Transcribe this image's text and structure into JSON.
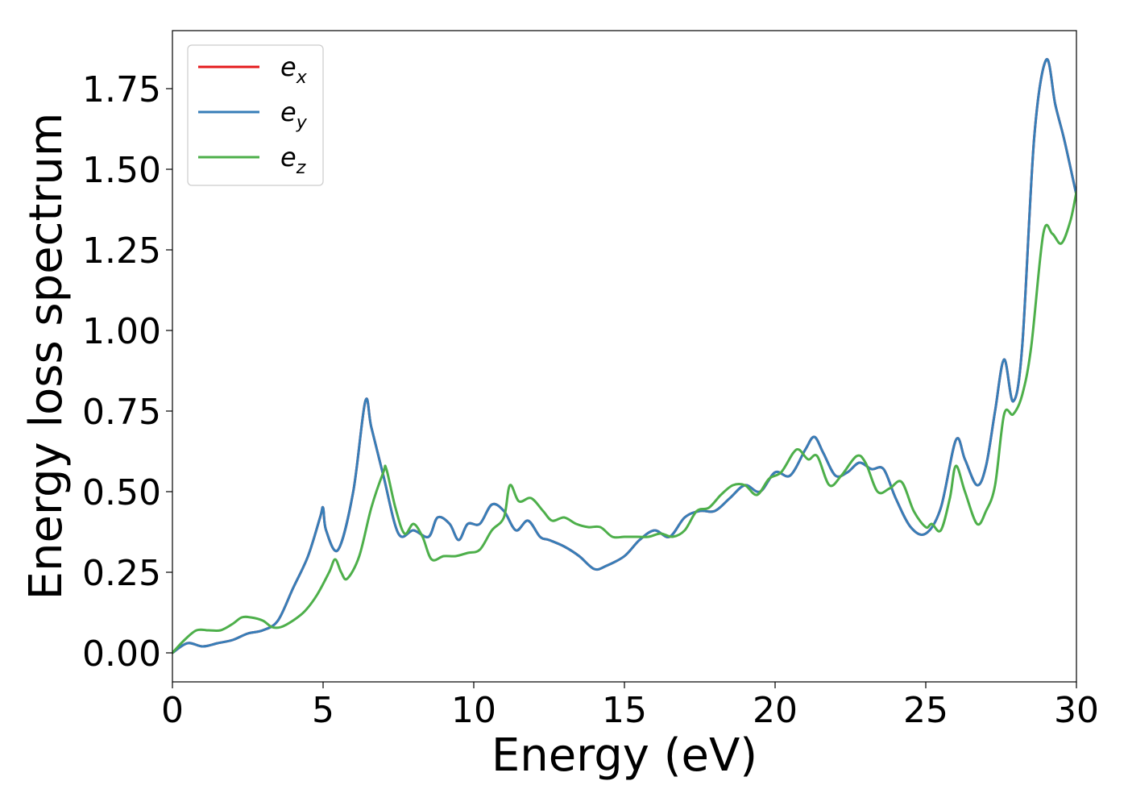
{
  "chart_data": {
    "type": "line",
    "xlabel": "Energy (eV)",
    "ylabel": "Energy loss spectrum",
    "xlim": [
      0,
      30
    ],
    "ylim": [
      -0.09,
      1.93
    ],
    "xticks": [
      0,
      5,
      10,
      15,
      20,
      25,
      30
    ],
    "xtick_labels": [
      "0",
      "5",
      "10",
      "15",
      "20",
      "25",
      "30"
    ],
    "yticks": [
      0.0,
      0.25,
      0.5,
      0.75,
      1.0,
      1.25,
      1.5,
      1.75
    ],
    "ytick_labels": [
      "0.00",
      "0.25",
      "0.50",
      "0.75",
      "1.00",
      "1.25",
      "1.50",
      "1.75"
    ],
    "grid": false,
    "legend": {
      "position": "top-left",
      "entries": [
        {
          "base": "e",
          "sub": "x",
          "color": "#e41a1c"
        },
        {
          "base": "e",
          "sub": "y",
          "color": "#377eb8"
        },
        {
          "base": "e",
          "sub": "z",
          "color": "#4daf4a"
        }
      ]
    },
    "series": [
      {
        "name": "ex",
        "color": "#e41a1c",
        "x": [
          0,
          0.5,
          1,
          1.5,
          2,
          2.5,
          3,
          3.5,
          4,
          4.5,
          4.9,
          5.0,
          5.1,
          5.5,
          6.0,
          6.4,
          6.6,
          7.0,
          7.5,
          8.0,
          8.5,
          8.8,
          9.2,
          9.5,
          9.8,
          10.2,
          10.6,
          11.0,
          11.4,
          11.8,
          12.2,
          12.5,
          13.0,
          13.5,
          14.0,
          14.4,
          15.0,
          15.5,
          16.0,
          16.5,
          17.0,
          17.5,
          18.0,
          18.5,
          19.0,
          19.5,
          20.0,
          20.5,
          21.0,
          21.3,
          21.6,
          22.0,
          22.4,
          22.8,
          23.2,
          23.6,
          24.0,
          24.5,
          25.0,
          25.5,
          26.0,
          26.3,
          26.7,
          27.0,
          27.3,
          27.6,
          27.9,
          28.2,
          28.6,
          29.0,
          29.3,
          29.6,
          30.0
        ],
        "y": [
          0.0,
          0.03,
          0.02,
          0.03,
          0.04,
          0.06,
          0.07,
          0.1,
          0.2,
          0.3,
          0.42,
          0.45,
          0.38,
          0.32,
          0.5,
          0.78,
          0.7,
          0.55,
          0.37,
          0.38,
          0.36,
          0.42,
          0.4,
          0.35,
          0.4,
          0.4,
          0.46,
          0.44,
          0.38,
          0.41,
          0.36,
          0.35,
          0.33,
          0.3,
          0.26,
          0.27,
          0.3,
          0.35,
          0.38,
          0.36,
          0.42,
          0.44,
          0.44,
          0.48,
          0.52,
          0.5,
          0.56,
          0.55,
          0.63,
          0.67,
          0.62,
          0.55,
          0.56,
          0.59,
          0.57,
          0.57,
          0.48,
          0.39,
          0.37,
          0.45,
          0.66,
          0.6,
          0.52,
          0.58,
          0.75,
          0.91,
          0.78,
          0.95,
          1.6,
          1.84,
          1.7,
          1.59,
          1.42
        ]
      },
      {
        "name": "ey",
        "color": "#377eb8",
        "x": [
          0,
          0.5,
          1,
          1.5,
          2,
          2.5,
          3,
          3.5,
          4,
          4.5,
          4.9,
          5.0,
          5.1,
          5.5,
          6.0,
          6.4,
          6.6,
          7.0,
          7.5,
          8.0,
          8.5,
          8.8,
          9.2,
          9.5,
          9.8,
          10.2,
          10.6,
          11.0,
          11.4,
          11.8,
          12.2,
          12.5,
          13.0,
          13.5,
          14.0,
          14.4,
          15.0,
          15.5,
          16.0,
          16.5,
          17.0,
          17.5,
          18.0,
          18.5,
          19.0,
          19.5,
          20.0,
          20.5,
          21.0,
          21.3,
          21.6,
          22.0,
          22.4,
          22.8,
          23.2,
          23.6,
          24.0,
          24.5,
          25.0,
          25.5,
          26.0,
          26.3,
          26.7,
          27.0,
          27.3,
          27.6,
          27.9,
          28.2,
          28.6,
          29.0,
          29.3,
          29.6,
          30.0
        ],
        "y": [
          0.0,
          0.03,
          0.02,
          0.03,
          0.04,
          0.06,
          0.07,
          0.1,
          0.2,
          0.3,
          0.42,
          0.45,
          0.38,
          0.32,
          0.5,
          0.78,
          0.7,
          0.55,
          0.37,
          0.38,
          0.36,
          0.42,
          0.4,
          0.35,
          0.4,
          0.4,
          0.46,
          0.44,
          0.38,
          0.41,
          0.36,
          0.35,
          0.33,
          0.3,
          0.26,
          0.27,
          0.3,
          0.35,
          0.38,
          0.36,
          0.42,
          0.44,
          0.44,
          0.48,
          0.52,
          0.5,
          0.56,
          0.55,
          0.63,
          0.67,
          0.62,
          0.55,
          0.56,
          0.59,
          0.57,
          0.57,
          0.48,
          0.39,
          0.37,
          0.45,
          0.66,
          0.6,
          0.52,
          0.58,
          0.75,
          0.91,
          0.78,
          0.95,
          1.6,
          1.84,
          1.7,
          1.59,
          1.42
        ]
      },
      {
        "name": "ez",
        "color": "#4daf4a",
        "x": [
          0,
          0.4,
          0.8,
          1.2,
          1.6,
          2.0,
          2.3,
          2.6,
          3.0,
          3.3,
          3.6,
          4.0,
          4.4,
          4.8,
          5.2,
          5.4,
          5.6,
          5.8,
          6.2,
          6.6,
          7.0,
          7.1,
          7.4,
          7.7,
          8.0,
          8.3,
          8.6,
          9.0,
          9.4,
          9.8,
          10.2,
          10.6,
          11.0,
          11.2,
          11.5,
          11.9,
          12.3,
          12.6,
          13.0,
          13.4,
          13.8,
          14.2,
          14.6,
          15.0,
          15.4,
          15.8,
          16.2,
          16.6,
          17.0,
          17.4,
          17.8,
          18.2,
          18.6,
          19.0,
          19.4,
          19.8,
          20.2,
          20.6,
          20.8,
          21.1,
          21.4,
          21.8,
          22.2,
          22.7,
          23.0,
          23.4,
          23.8,
          24.2,
          24.6,
          25.0,
          25.2,
          25.5,
          25.8,
          26.0,
          26.3,
          26.7,
          27.0,
          27.3,
          27.6,
          27.9,
          28.2,
          28.5,
          28.9,
          29.2,
          29.5,
          29.8,
          30.0
        ],
        "y": [
          0.0,
          0.04,
          0.07,
          0.07,
          0.07,
          0.09,
          0.11,
          0.11,
          0.1,
          0.08,
          0.08,
          0.1,
          0.13,
          0.18,
          0.25,
          0.29,
          0.25,
          0.23,
          0.3,
          0.45,
          0.56,
          0.57,
          0.45,
          0.37,
          0.4,
          0.36,
          0.29,
          0.3,
          0.3,
          0.31,
          0.32,
          0.38,
          0.42,
          0.52,
          0.47,
          0.48,
          0.44,
          0.41,
          0.42,
          0.4,
          0.39,
          0.39,
          0.36,
          0.36,
          0.36,
          0.36,
          0.37,
          0.36,
          0.38,
          0.44,
          0.45,
          0.49,
          0.52,
          0.52,
          0.49,
          0.54,
          0.56,
          0.62,
          0.63,
          0.6,
          0.61,
          0.52,
          0.55,
          0.61,
          0.59,
          0.5,
          0.51,
          0.53,
          0.44,
          0.39,
          0.4,
          0.38,
          0.48,
          0.58,
          0.5,
          0.4,
          0.44,
          0.52,
          0.74,
          0.74,
          0.8,
          0.95,
          1.3,
          1.3,
          1.27,
          1.34,
          1.43
        ]
      }
    ]
  }
}
